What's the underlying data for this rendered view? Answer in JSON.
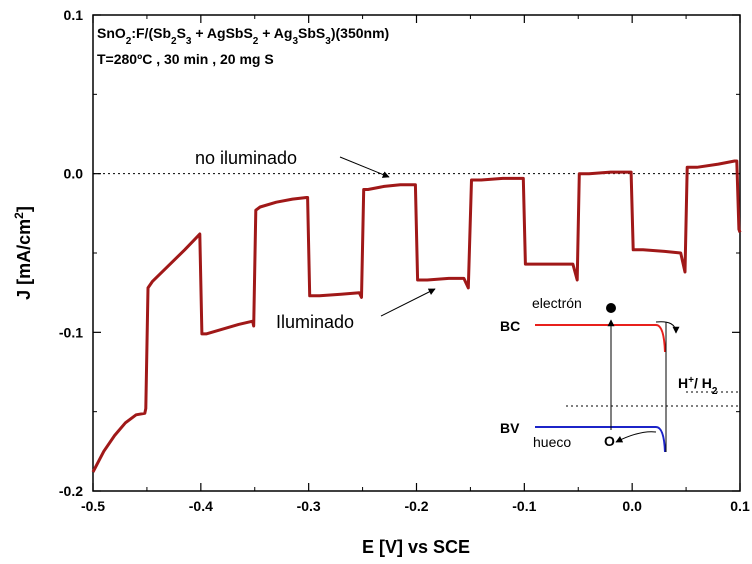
{
  "chart_data": {
    "type": "line",
    "xlabel": "E [V] vs SCE",
    "ylabel": "J [mA/cm",
    "ylabel_sup": "2",
    "ylabel_end": "]",
    "xlim": [
      -0.5,
      0.1
    ],
    "ylim": [
      -0.2,
      0.1
    ],
    "x_ticks": [
      {
        "value": -0.5,
        "label": "-0.5"
      },
      {
        "value": -0.4,
        "label": "-0.4"
      },
      {
        "value": -0.3,
        "label": "-0.3"
      },
      {
        "value": -0.2,
        "label": "-0.2"
      },
      {
        "value": -0.1,
        "label": "-0.1"
      },
      {
        "value": 0.0,
        "label": "0.0"
      },
      {
        "value": 0.1,
        "label": "0.1"
      }
    ],
    "y_ticks": [
      {
        "value": 0.1,
        "label": "0.1"
      },
      {
        "value": 0.0,
        "label": "0.0"
      },
      {
        "value": -0.1,
        "label": "-0.1"
      },
      {
        "value": -0.2,
        "label": "-0.2"
      }
    ],
    "reference_line": {
      "y": 0.0,
      "style": "dotted"
    },
    "series": [
      {
        "color": "#a01818",
        "points": [
          [
            -0.5,
            -0.188
          ],
          [
            -0.49,
            -0.175
          ],
          [
            -0.48,
            -0.165
          ],
          [
            -0.47,
            -0.157
          ],
          [
            -0.46,
            -0.152
          ],
          [
            -0.452,
            -0.151
          ],
          [
            -0.451,
            -0.148
          ],
          [
            -0.449,
            -0.072
          ],
          [
            -0.445,
            -0.068
          ],
          [
            -0.43,
            -0.058
          ],
          [
            -0.415,
            -0.048
          ],
          [
            -0.405,
            -0.041
          ],
          [
            -0.401,
            -0.038
          ],
          [
            -0.399,
            -0.101
          ],
          [
            -0.395,
            -0.101
          ],
          [
            -0.38,
            -0.098
          ],
          [
            -0.365,
            -0.095
          ],
          [
            -0.352,
            -0.093
          ],
          [
            -0.351,
            -0.096
          ],
          [
            -0.349,
            -0.023
          ],
          [
            -0.345,
            -0.021
          ],
          [
            -0.33,
            -0.018
          ],
          [
            -0.315,
            -0.016
          ],
          [
            -0.302,
            -0.015
          ],
          [
            -0.301,
            -0.015
          ],
          [
            -0.299,
            -0.077
          ],
          [
            -0.29,
            -0.077
          ],
          [
            -0.27,
            -0.076
          ],
          [
            -0.253,
            -0.075
          ],
          [
            -0.251,
            -0.078
          ],
          [
            -0.249,
            -0.01
          ],
          [
            -0.245,
            -0.01
          ],
          [
            -0.23,
            -0.008
          ],
          [
            -0.215,
            -0.007
          ],
          [
            -0.202,
            -0.007
          ],
          [
            -0.201,
            -0.007
          ],
          [
            -0.199,
            -0.067
          ],
          [
            -0.19,
            -0.067
          ],
          [
            -0.17,
            -0.066
          ],
          [
            -0.156,
            -0.066
          ],
          [
            -0.152,
            -0.072
          ],
          [
            -0.149,
            -0.004
          ],
          [
            -0.14,
            -0.004
          ],
          [
            -0.12,
            -0.003
          ],
          [
            -0.102,
            -0.003
          ],
          [
            -0.101,
            -0.003
          ],
          [
            -0.099,
            -0.057
          ],
          [
            -0.09,
            -0.057
          ],
          [
            -0.07,
            -0.057
          ],
          [
            -0.055,
            -0.057
          ],
          [
            -0.051,
            -0.067
          ],
          [
            -0.049,
            0.0
          ],
          [
            -0.04,
            0.0
          ],
          [
            -0.02,
            0.001
          ],
          [
            -0.003,
            0.001
          ],
          [
            -0.001,
            0.001
          ],
          [
            0.001,
            -0.048
          ],
          [
            0.01,
            -0.048
          ],
          [
            0.03,
            -0.049
          ],
          [
            0.045,
            -0.05
          ],
          [
            0.049,
            -0.062
          ],
          [
            0.051,
            0.004
          ],
          [
            0.06,
            0.004
          ],
          [
            0.08,
            0.006
          ],
          [
            0.095,
            0.008
          ],
          [
            0.097,
            0.008
          ],
          [
            0.099,
            -0.035
          ],
          [
            0.1,
            -0.037
          ]
        ]
      }
    ]
  },
  "annotations": {
    "sample_line1_a": "SnO",
    "sample_line1_sub": "2",
    "sample_line1_b": ":F/(Sb",
    "sample_line1_sub2": "2",
    "sample_line1_c": "S",
    "sample_line1_sub3": "3",
    "sample_line1_d": " + AgSbS",
    "sample_line1_sub4": "2",
    "sample_line1_e": " + Ag",
    "sample_line1_sub5": "3",
    "sample_line1_f": "SbS",
    "sample_line1_sub6": "3",
    "sample_line1_g": ")(350nm)",
    "sample_line2": "T=280ºC , 30 min , 20 mg S",
    "dark_label": "no iluminado",
    "light_label": "Iluminado"
  },
  "inset": {
    "bc_label": "BC",
    "bv_label": "BV",
    "electron_label": "electrón",
    "hole_label": "hueco",
    "hole_symbol": "O",
    "redox_label_main": "H",
    "redox_label_sup": "+",
    "redox_label_mid": "/ H",
    "redox_label_sub": "2",
    "bc_color": "#e8201c",
    "bv_color": "#1c24c8"
  }
}
